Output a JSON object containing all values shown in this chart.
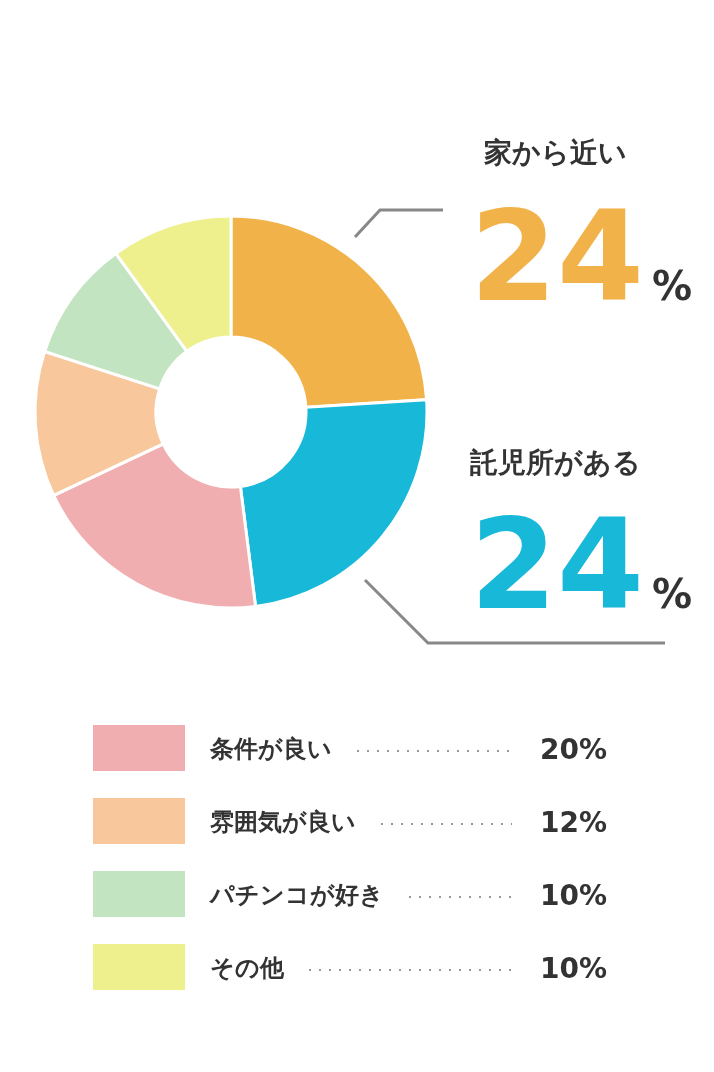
{
  "chart_data": {
    "type": "donut",
    "categories": [
      "家から近い",
      "託児所がある",
      "条件が良い",
      "雰囲気が良い",
      "パチンコが好き",
      "その他"
    ],
    "values": [
      24,
      24,
      20,
      12,
      10,
      10
    ],
    "colors": [
      "#f2b24a",
      "#17b8d8",
      "#f0aeb0",
      "#f8c89c",
      "#c2e4c0",
      "#eef08e"
    ],
    "value_labels": [
      "24%",
      "24%",
      "20%",
      "12%",
      "10%",
      "10%"
    ],
    "legend": "bottom"
  }
}
